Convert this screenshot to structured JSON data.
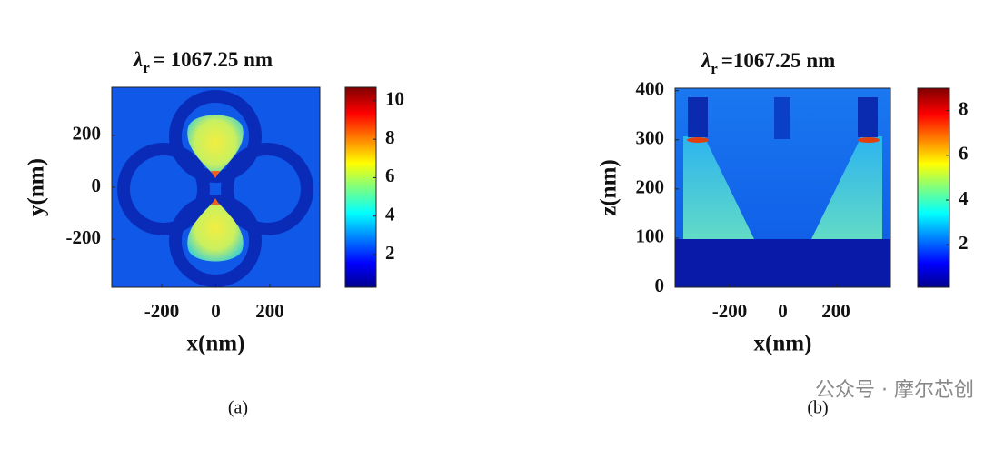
{
  "chart_data": [
    {
      "type": "heatmap",
      "title_symbol": "λ",
      "title_subscript": "r",
      "title_text": "= 1067.25 nm",
      "xlabel": "x(nm)",
      "ylabel": "y(nm)",
      "xlim": [
        -385,
        385
      ],
      "xticks": [
        -200,
        0,
        200
      ],
      "ylim": [
        -385,
        385
      ],
      "yticks": [
        -200,
        0,
        200
      ],
      "colormap": "jet",
      "clim": [
        0.3,
        10.7
      ],
      "cticks": [
        2,
        4,
        6,
        8,
        10
      ],
      "caption": "(a)"
    },
    {
      "type": "heatmap",
      "title_symbol": "λ",
      "title_subscript": "r",
      "title_text": "=1067.25 nm",
      "xlabel": "x(nm)",
      "ylabel": "z(nm)",
      "xlim": [
        -405,
        405
      ],
      "xticks": [
        -200,
        0,
        200
      ],
      "ylim": [
        0,
        405
      ],
      "yticks": [
        0,
        100,
        200,
        300,
        400
      ],
      "colormap": "jet",
      "clim": [
        0.1,
        9
      ],
      "cticks": [
        2,
        4,
        6,
        8
      ],
      "caption": "(b)"
    }
  ],
  "watermark": "公众号 · 摩尔芯创"
}
